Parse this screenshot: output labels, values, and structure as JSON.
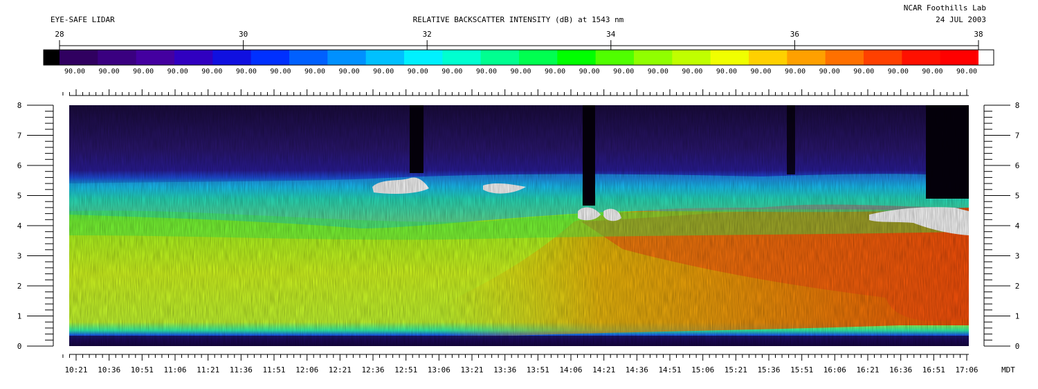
{
  "header": {
    "left_title": "EYE-SAFE LIDAR",
    "center_title": "RELATIVE BACKSCATTER INTENSITY (dB) at 1543 nm",
    "org": "NCAR Foothills Lab",
    "date": "24 JUL 2003"
  },
  "chart_data": {
    "type": "heatmap",
    "title": "RELATIVE BACKSCATTER INTENSITY (dB) at 1543 nm",
    "colorbar": {
      "range": [
        28,
        38
      ],
      "ticks": [
        "28",
        "30",
        "32",
        "34",
        "36",
        "38"
      ],
      "segment_labels": [
        "90.00",
        "90.00",
        "90.00",
        "90.00",
        "90.00",
        "90.00",
        "90.00",
        "90.00",
        "90.00",
        "90.00",
        "90.00",
        "90.00",
        "90.00",
        "90.00",
        "90.00",
        "90.00",
        "90.00",
        "90.00",
        "90.00",
        "90.00",
        "90.00",
        "90.00",
        "90.00",
        "90.00",
        "90.00",
        "90.00",
        "90.00"
      ],
      "colors": [
        "#000000",
        "#300060",
        "#3a0080",
        "#4400a0",
        "#3000c0",
        "#1010e0",
        "#0030ff",
        "#0060ff",
        "#0090ff",
        "#00c0ff",
        "#00f0ff",
        "#00ffd0",
        "#00ff90",
        "#00ff50",
        "#00ff00",
        "#50ff00",
        "#90ff00",
        "#c0ff00",
        "#f0ff00",
        "#ffd000",
        "#ffa000",
        "#ff7000",
        "#ff4000",
        "#ff1000",
        "#ff0000",
        "#ffffff"
      ]
    },
    "yaxis": {
      "range": [
        0,
        8
      ],
      "ticks": [
        "0",
        "1",
        "2",
        "3",
        "4",
        "5",
        "6",
        "7",
        "8"
      ]
    },
    "xaxis": {
      "unit": "MDT",
      "ticks": [
        "10:21",
        "10:36",
        "10:51",
        "11:06",
        "11:21",
        "11:36",
        "11:51",
        "12:06",
        "12:21",
        "12:36",
        "12:51",
        "13:06",
        "13:21",
        "13:36",
        "13:51",
        "14:06",
        "14:21",
        "14:36",
        "14:51",
        "15:06",
        "15:21",
        "15:36",
        "15:51",
        "16:06",
        "16:21",
        "16:36",
        "16:51",
        "17:06"
      ]
    }
  }
}
